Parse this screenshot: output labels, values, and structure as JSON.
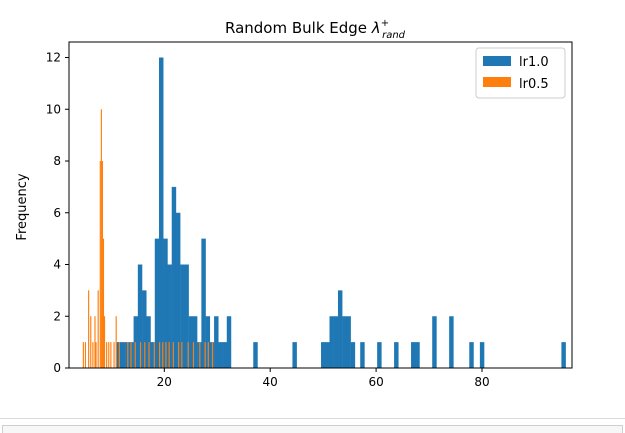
{
  "chart_data": {
    "type": "histogram",
    "title_main": "Random Bulk Edge ",
    "title_lambda": "λ",
    "title_sup": "+",
    "title_sub": "rand",
    "xlabel": "",
    "ylabel": "Frequency",
    "xlim": [
      2,
      97
    ],
    "ylim": [
      0,
      12.6
    ],
    "x_ticks": [
      20,
      40,
      60,
      80
    ],
    "y_ticks": [
      0,
      2,
      4,
      6,
      8,
      10,
      12
    ],
    "grid": false,
    "legend_position": "top-right",
    "series": [
      {
        "name": "lr1.0",
        "color": "#1f77b4",
        "bin_width": 0.84,
        "bins": [
          [
            11.0,
            1
          ],
          [
            11.8,
            1
          ],
          [
            12.6,
            1
          ],
          [
            13.4,
            1
          ],
          [
            14.2,
            2
          ],
          [
            15.0,
            4
          ],
          [
            15.8,
            3
          ],
          [
            16.6,
            2
          ],
          [
            17.4,
            1
          ],
          [
            18.2,
            5
          ],
          [
            19.0,
            12
          ],
          [
            19.8,
            5
          ],
          [
            20.6,
            4
          ],
          [
            21.4,
            7
          ],
          [
            22.2,
            6
          ],
          [
            23.0,
            4
          ],
          [
            23.8,
            4
          ],
          [
            24.6,
            2
          ],
          [
            25.4,
            2
          ],
          [
            26.2,
            1
          ],
          [
            27.0,
            5
          ],
          [
            27.8,
            2
          ],
          [
            28.6,
            1
          ],
          [
            29.4,
            2
          ],
          [
            30.2,
            1
          ],
          [
            31.0,
            1
          ],
          [
            31.8,
            2
          ],
          [
            36.8,
            1
          ],
          [
            44.2,
            1
          ],
          [
            49.6,
            1
          ],
          [
            50.4,
            1
          ],
          [
            51.2,
            2
          ],
          [
            52.0,
            2
          ],
          [
            52.8,
            3
          ],
          [
            53.6,
            2
          ],
          [
            54.4,
            2
          ],
          [
            55.2,
            1
          ],
          [
            57.0,
            1
          ],
          [
            60.2,
            1
          ],
          [
            63.4,
            1
          ],
          [
            66.6,
            1
          ],
          [
            67.4,
            1
          ],
          [
            70.6,
            2
          ],
          [
            73.8,
            2
          ],
          [
            77.6,
            1
          ],
          [
            79.6,
            1
          ],
          [
            95.0,
            1
          ]
        ]
      },
      {
        "name": "lr0.5",
        "color": "#ff7f0e",
        "bin_width": 0.22,
        "bins": [
          [
            4.6,
            1
          ],
          [
            5.0,
            1
          ],
          [
            5.6,
            3
          ],
          [
            6.0,
            2
          ],
          [
            6.4,
            1
          ],
          [
            6.8,
            2
          ],
          [
            7.0,
            1
          ],
          [
            7.4,
            3
          ],
          [
            7.8,
            8
          ],
          [
            8.0,
            10
          ],
          [
            8.2,
            8
          ],
          [
            8.4,
            5
          ],
          [
            8.6,
            2
          ],
          [
            9.0,
            1
          ],
          [
            9.4,
            1
          ],
          [
            9.8,
            1
          ],
          [
            10.4,
            1
          ],
          [
            10.8,
            2
          ],
          [
            11.4,
            1
          ],
          [
            13.0,
            1
          ],
          [
            13.6,
            1
          ],
          [
            14.4,
            1
          ],
          [
            15.4,
            1
          ],
          [
            16.2,
            1
          ],
          [
            17.0,
            1
          ],
          [
            18.0,
            1
          ],
          [
            19.0,
            1
          ],
          [
            19.6,
            1
          ],
          [
            20.2,
            1
          ],
          [
            20.8,
            1
          ],
          [
            21.6,
            1
          ],
          [
            22.6,
            1
          ],
          [
            23.2,
            1
          ],
          [
            24.4,
            1
          ],
          [
            25.4,
            1
          ],
          [
            26.6,
            1
          ],
          [
            27.6,
            1
          ],
          [
            28.2,
            1
          ],
          [
            29.0,
            1
          ]
        ]
      }
    ]
  }
}
